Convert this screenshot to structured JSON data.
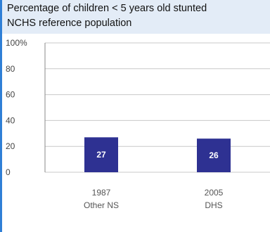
{
  "chart_data": {
    "type": "bar",
    "title_line1": "Percentage of children < 5 years old stunted",
    "title_line2": "NCHS reference population",
    "categories": [
      {
        "year": "1987",
        "source": "Other NS"
      },
      {
        "year": "2005",
        "source": "DHS"
      }
    ],
    "values": [
      27,
      26
    ],
    "value_labels": [
      "27",
      "26"
    ],
    "yticks": [
      "0",
      "20",
      "40",
      "60",
      "80",
      "100%"
    ],
    "ylim": [
      0,
      100
    ],
    "grid": true,
    "bar_color": "#2e3192",
    "grid_color": "#c8c8c8",
    "frame_color": "#2f7fd6",
    "header_color": "#e3ecf7"
  }
}
